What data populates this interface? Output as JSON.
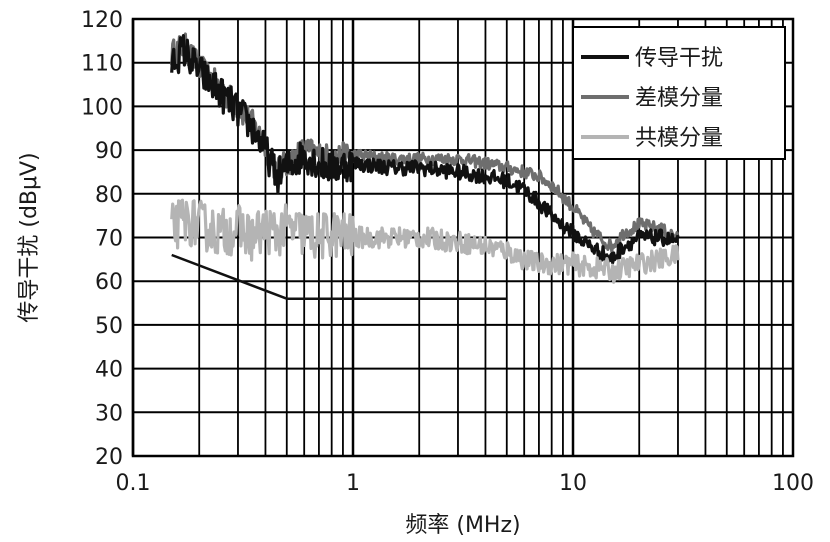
{
  "chart_data": {
    "type": "line",
    "xlabel": "频率 (MHz)",
    "ylabel": "传导干扰 (dBμV)",
    "x_scale": "log",
    "xlim": [
      0.1,
      100
    ],
    "ylim": [
      20,
      120
    ],
    "x_ticks": [
      0.1,
      1,
      10,
      100
    ],
    "x_tick_labels": [
      "0.1",
      "1",
      "10",
      "100"
    ],
    "y_ticks": [
      20,
      30,
      40,
      50,
      60,
      70,
      80,
      90,
      100,
      110,
      120
    ],
    "y_tick_labels": [
      "20",
      "30",
      "40",
      "50",
      "60",
      "70",
      "80",
      "90",
      "100",
      "110",
      "120"
    ],
    "grid": true,
    "legend_position": "top-right",
    "series": [
      {
        "name": "传导干扰",
        "color": "#111111",
        "noise": 2.5,
        "x": [
          0.15,
          0.17,
          0.2,
          0.25,
          0.3,
          0.35,
          0.4,
          0.45,
          0.5,
          0.6,
          0.7,
          0.8,
          1,
          1.5,
          2,
          3,
          4,
          5,
          6,
          7,
          8,
          10,
          12,
          14,
          15,
          17,
          20,
          25,
          30
        ],
        "y": [
          110,
          113,
          108,
          103,
          99,
          95,
          90,
          84,
          86,
          89,
          87,
          86,
          87,
          86,
          86,
          85,
          84,
          83,
          81,
          78,
          75,
          71,
          68,
          66,
          65,
          68,
          70,
          70,
          69
        ]
      },
      {
        "name": "差模分量",
        "color": "#6e6e6e",
        "noise": 2.0,
        "x": [
          0.15,
          0.17,
          0.2,
          0.25,
          0.3,
          0.35,
          0.4,
          0.45,
          0.5,
          0.6,
          0.7,
          0.8,
          1,
          1.5,
          2,
          3,
          4,
          5,
          6,
          7,
          8,
          10,
          12,
          14,
          15,
          17,
          20,
          25,
          30
        ],
        "y": [
          112,
          114,
          109,
          104,
          100,
          96,
          91,
          85,
          87,
          90,
          89,
          88,
          89,
          88,
          88,
          88,
          87,
          86,
          85,
          84,
          82,
          77,
          72,
          69,
          68,
          71,
          73,
          72,
          70
        ]
      },
      {
        "name": "共模分量",
        "color": "#b4b4b4",
        "noise": 3.5,
        "x": [
          0.15,
          0.17,
          0.2,
          0.25,
          0.3,
          0.35,
          0.4,
          0.45,
          0.5,
          0.6,
          0.7,
          0.8,
          1,
          1.5,
          2,
          3,
          4,
          5,
          6,
          7,
          8,
          10,
          12,
          14,
          15,
          17,
          20,
          25,
          30
        ],
        "y": [
          72,
          74,
          73,
          71,
          72,
          70,
          72,
          71,
          72,
          71,
          70,
          71,
          70,
          70,
          70,
          69,
          68,
          67,
          65,
          64,
          64,
          64,
          63,
          63,
          62,
          63,
          64,
          65,
          66
        ]
      },
      {
        "color": "#111111",
        "noise": 0,
        "x": [
          0.15,
          0.5,
          5
        ],
        "y": [
          66,
          56,
          56
        ]
      }
    ]
  }
}
